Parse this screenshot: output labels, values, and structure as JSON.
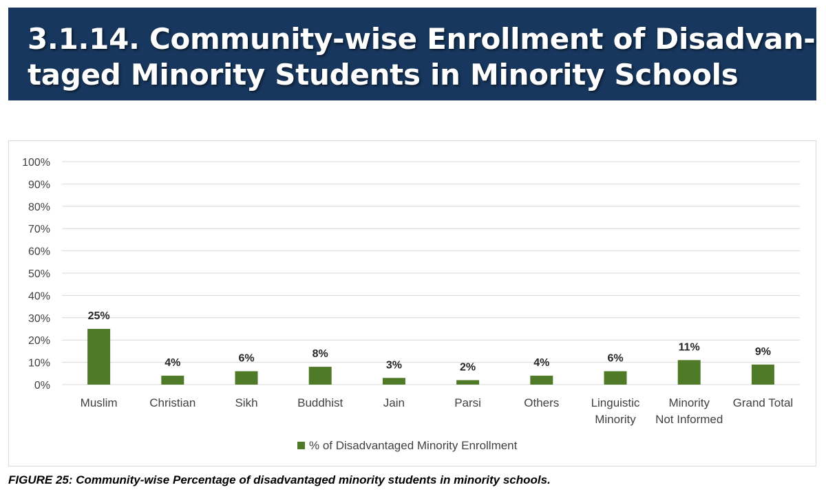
{
  "header": {
    "title_line1": "3.1.14. Community-wise Enrollment of Disadvan-",
    "title_line2": "taged Minority Students in Minority Schools"
  },
  "caption": "FIGURE 25: Community-wise Percentage of disadvantaged minority students in minority schools.",
  "colors": {
    "banner": "#17375e",
    "bar": "#4f7a28",
    "grid": "#d9d9d9"
  },
  "chart_data": {
    "type": "bar",
    "title": "",
    "xlabel": "",
    "ylabel": "",
    "ylim": [
      0,
      100
    ],
    "yticks": [
      0,
      10,
      20,
      30,
      40,
      50,
      60,
      70,
      80,
      90,
      100
    ],
    "ytick_labels": [
      "0%",
      "10%",
      "20%",
      "30%",
      "40%",
      "50%",
      "60%",
      "70%",
      "80%",
      "90%",
      "100%"
    ],
    "grid": true,
    "legend_position": "bottom",
    "categories": [
      [
        "Muslim"
      ],
      [
        "Christian"
      ],
      [
        "Sikh"
      ],
      [
        "Buddhist"
      ],
      [
        "Jain"
      ],
      [
        "Parsi"
      ],
      [
        "Others"
      ],
      [
        "Linguistic",
        "Minority"
      ],
      [
        "Minority",
        "Not Informed"
      ],
      [
        "Grand Total"
      ]
    ],
    "series": [
      {
        "name": "% of Disadvantaged Minority Enrollment",
        "values": [
          25,
          4,
          6,
          8,
          3,
          2,
          4,
          6,
          11,
          9
        ],
        "data_labels": [
          "25%",
          "4%",
          "6%",
          "8%",
          "3%",
          "2%",
          "4%",
          "6%",
          "11%",
          "9%"
        ]
      }
    ]
  }
}
